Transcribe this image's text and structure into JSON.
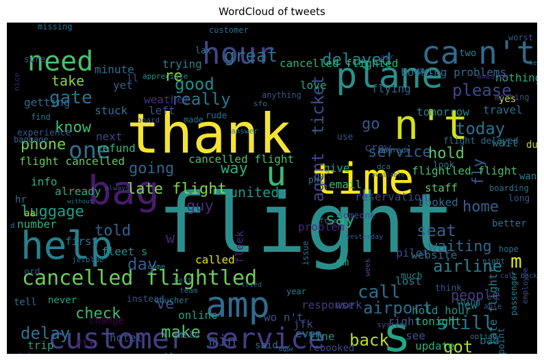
{
  "title": "WordCloud of tweets",
  "cloud": {
    "background": "#000000",
    "palette": "viridis",
    "words": [
      {
        "text": "flight",
        "c": "#2a8f8c"
      },
      {
        "text": "thank",
        "c": "#f4e332"
      },
      {
        "text": "customer service",
        "c": "#433e85"
      },
      {
        "text": "plane",
        "c": "#2a8f8c"
      },
      {
        "text": "time",
        "c": "#f8e621"
      },
      {
        "text": "bag",
        "c": "#481b6d"
      },
      {
        "text": "help",
        "c": "#26818e"
      },
      {
        "text": "hour",
        "c": "#3f4788"
      },
      {
        "text": "ca n't",
        "c": "#2f6b8e"
      },
      {
        "text": "n't",
        "c": "#d0e11c"
      },
      {
        "text": "s",
        "c": "#21a585"
      },
      {
        "text": "amp",
        "c": "#2f6c8e"
      },
      {
        "text": "u",
        "c": "#3bbb75"
      },
      {
        "text": "need",
        "c": "#4ac16d"
      },
      {
        "text": "one",
        "c": "#2e6e8e"
      },
      {
        "text": "cancelled flightled",
        "c": "#6ccd5a"
      },
      {
        "text": "m",
        "c": "#d8e219"
      },
      {
        "text": "gate",
        "c": "#2c738e"
      },
      {
        "text": "delayed",
        "c": "#26828e"
      },
      {
        "text": "agent",
        "c": "#404688"
      },
      {
        "text": "ticket",
        "c": "#3b528b"
      },
      {
        "text": "please",
        "c": "#3f4889"
      },
      {
        "text": "really",
        "c": "#2a768e"
      },
      {
        "text": "great",
        "c": "#2c718e"
      },
      {
        "text": "good",
        "c": "#21908d"
      },
      {
        "text": "service",
        "c": "#355f8d"
      },
      {
        "text": "today",
        "c": "#2c728e"
      },
      {
        "text": "go",
        "c": "#38588c"
      },
      {
        "text": "fly",
        "c": "#38588c"
      },
      {
        "text": "hold",
        "c": "#5cc863"
      },
      {
        "text": "know",
        "c": "#3dbc74"
      },
      {
        "text": "phone",
        "c": "#75d054"
      },
      {
        "text": "going",
        "c": "#31668e"
      },
      {
        "text": "late flight",
        "c": "#85d54a"
      },
      {
        "text": "way",
        "c": "#2ab07f"
      },
      {
        "text": "guy",
        "c": "#472d7b"
      },
      {
        "text": "luggage",
        "c": "#1fa088"
      },
      {
        "text": "united",
        "c": "#1f9a8a"
      },
      {
        "text": "home",
        "c": "#34608d"
      },
      {
        "text": "seat",
        "c": "#355f8d"
      },
      {
        "text": "say",
        "c": "#28ae80"
      },
      {
        "text": "told",
        "c": "#33628d"
      },
      {
        "text": "w",
        "c": "#482576"
      },
      {
        "text": "waiting",
        "c": "#31688e"
      },
      {
        "text": "airline",
        "c": "#26828e"
      },
      {
        "text": "day",
        "c": "#38598c"
      },
      {
        "text": "people",
        "c": "#443b84"
      },
      {
        "text": "call",
        "c": "#2d708e"
      },
      {
        "text": "airport",
        "c": "#306a8e"
      },
      {
        "text": "check",
        "c": "#3fbc73"
      },
      {
        "text": "ve",
        "c": "#3e4c8a"
      },
      {
        "text": "delay",
        "c": "#2c738e"
      },
      {
        "text": "make",
        "c": "#4ec36b"
      },
      {
        "text": "min",
        "c": "#3e4a89"
      },
      {
        "text": "still",
        "c": "#2c728e"
      },
      {
        "text": "back",
        "c": "#bade28"
      },
      {
        "text": "got",
        "c": "#addc30"
      },
      {
        "text": "take",
        "c": "#89d548"
      },
      {
        "text": "re",
        "c": "#9bd93c"
      },
      {
        "text": "cancelled flighted",
        "c": "#2eb37c"
      },
      {
        "text": "booking problems",
        "c": "#2e6d8e"
      },
      {
        "text": "flying",
        "c": "#2e6e8e"
      },
      {
        "text": "trying",
        "c": "#25838e"
      },
      {
        "text": "minute",
        "c": "#2c728e"
      },
      {
        "text": "yet",
        "c": "#33638d"
      },
      {
        "text": "love",
        "c": "#28ae80"
      },
      {
        "text": "nothing",
        "c": "#2ab07f"
      },
      {
        "text": "travel",
        "c": "#2d708e"
      },
      {
        "text": "tomorrow",
        "c": "#24878e"
      },
      {
        "text": "stuck",
        "c": "#2a768e"
      },
      {
        "text": "left",
        "c": "#3b528b"
      },
      {
        "text": "getting",
        "c": "#2f6c8e"
      },
      {
        "text": "weather",
        "c": "#472f7d"
      },
      {
        "text": "crew",
        "c": "#404688"
      },
      {
        "text": "next",
        "c": "#3e4989"
      },
      {
        "text": "refund",
        "c": "#34b679"
      },
      {
        "text": "flight cancelled",
        "c": "#65cb5e"
      },
      {
        "text": "cancelled flight",
        "c": "#4ac16d"
      },
      {
        "text": "flightled flight",
        "c": "#4ac16d"
      },
      {
        "text": "give",
        "c": "#20a386"
      },
      {
        "text": "email",
        "c": "#3fbc73"
      },
      {
        "text": "staff",
        "c": "#58c765"
      },
      {
        "text": "booked",
        "c": "#2e6f8e"
      },
      {
        "text": "pilot",
        "c": "#3b528b"
      },
      {
        "text": "reservation",
        "c": "#414487"
      },
      {
        "text": "problem",
        "c": "#482979"
      },
      {
        "text": "fleet s",
        "c": "#21918c"
      },
      {
        "text": "fleek",
        "c": "#482475"
      },
      {
        "text": "website",
        "c": "#2e6e8e"
      },
      {
        "text": "info",
        "c": "#2db27d"
      },
      {
        "text": "already",
        "c": "#2ab07f"
      },
      {
        "text": "number",
        "c": "#2fb47c"
      },
      {
        "text": "first",
        "c": "#2c738e"
      },
      {
        "text": "called",
        "c": "#e5e419"
      },
      {
        "text": "dm",
        "c": "#20a486"
      },
      {
        "text": "lost",
        "c": "#24868e"
      },
      {
        "text": "new",
        "c": "#24868e"
      },
      {
        "text": "bad",
        "c": "#2d708e"
      },
      {
        "text": "see",
        "c": "#3b528b"
      },
      {
        "text": "online",
        "c": "#1fa188"
      },
      {
        "text": "response",
        "c": "#443983"
      },
      {
        "text": "line",
        "c": "#21918c"
      },
      {
        "text": "wo n't",
        "c": "#3b528b"
      },
      {
        "text": "hold hour",
        "c": "#21918c"
      },
      {
        "text": "right",
        "c": "#38588c"
      },
      {
        "text": "tonight",
        "c": "#2ab07f"
      },
      {
        "text": "update",
        "c": "#29af7f"
      },
      {
        "text": "late flightr",
        "c": "#26828e"
      },
      {
        "text": "hotel",
        "c": "#38588c"
      },
      {
        "text": "trip",
        "c": "#20a386"
      },
      {
        "text": "flt",
        "c": "#481769"
      },
      {
        "text": "dfw",
        "c": "#2d708e"
      },
      {
        "text": "another",
        "c": "#24878e"
      },
      {
        "text": "leave",
        "c": "#2e6e8e"
      },
      {
        "text": "said",
        "c": "#2d718e"
      },
      {
        "text": "rebooked",
        "c": "#3e4989"
      },
      {
        "text": "change",
        "c": "#440154"
      },
      {
        "text": "mile",
        "c": "#3e4a89"
      },
      {
        "text": "jfk",
        "c": "#3e4989"
      },
      {
        "text": "even",
        "c": "#2c728e"
      },
      {
        "text": "work",
        "c": "#404688"
      },
      {
        "text": "tell",
        "c": "#2e6d8e"
      },
      {
        "text": "never",
        "c": "#21a585"
      },
      {
        "text": "instead",
        "c": "#3b528b"
      },
      {
        "text": "customer",
        "c": "#2e6e8e"
      },
      {
        "text": "lax",
        "c": "#2c738e"
      },
      {
        "text": "sfo",
        "c": "#2a768e"
      },
      {
        "text": "anything",
        "c": "#38588c"
      },
      {
        "text": "rude",
        "c": "#2c718e"
      },
      {
        "text": "made",
        "c": "#2c738e"
      },
      {
        "text": "answer",
        "c": "#2a768e"
      },
      {
        "text": "ll",
        "c": "#39568c"
      },
      {
        "text": "board",
        "c": "#3b528b"
      },
      {
        "text": "find",
        "c": "#2c728e"
      },
      {
        "text": "appreciate",
        "c": "#21918c"
      },
      {
        "text": "nice",
        "c": "#482576"
      },
      {
        "text": "missing",
        "c": "#2c738e"
      },
      {
        "text": "sure",
        "c": "#3b528b"
      },
      {
        "text": "experience",
        "c": "#38588c"
      },
      {
        "text": "baggage",
        "c": "#31688e"
      },
      {
        "text": "clt",
        "c": "#481f70"
      },
      {
        "text": "aa",
        "c": "#addc30"
      },
      {
        "text": "hr",
        "c": "#2d708e"
      },
      {
        "text": "always",
        "c": "#3e4a89"
      },
      {
        "text": "without",
        "c": "#2c718e"
      },
      {
        "text": "jetblue",
        "c": "#2d708e"
      },
      {
        "text": "d",
        "c": "#2a768e"
      },
      {
        "text": "ord",
        "c": "#38588c"
      },
      {
        "text": "voucher",
        "c": "#2a768e"
      },
      {
        "text": "come",
        "c": "#24868e"
      },
      {
        "text": "best",
        "c": "#2c728e"
      },
      {
        "text": "team",
        "c": "#2c738e"
      },
      {
        "text": "tried",
        "c": "#31688e"
      },
      {
        "text": "year",
        "c": "#26828e"
      },
      {
        "text": "issue",
        "c": "#2c738e"
      },
      {
        "text": "free",
        "c": "#2c718e"
      },
      {
        "text": "yesterday",
        "c": "#38588c"
      },
      {
        "text": "someone",
        "c": "#3e4a89"
      },
      {
        "text": "use",
        "c": "#3b528b"
      },
      {
        "text": "dca",
        "c": "#2c728e"
      },
      {
        "text": "phl",
        "c": "#2c738e"
      },
      {
        "text": "available",
        "c": "#38588c"
      },
      {
        "text": "look",
        "c": "#2c728e"
      },
      {
        "text": "upgrade",
        "c": "#2d708e"
      },
      {
        "text": "much",
        "c": "#24868e"
      },
      {
        "text": "think",
        "c": "#38588c"
      },
      {
        "text": "system",
        "c": "#3b528b"
      },
      {
        "text": "thing",
        "c": "#2c718e"
      },
      {
        "text": "week",
        "c": "#3e4a89"
      },
      {
        "text": "done",
        "c": "#2c738e"
      },
      {
        "text": "pay",
        "c": "#38588c"
      },
      {
        "text": "wifi",
        "c": "#2c718e"
      },
      {
        "text": "status",
        "c": "#2c738e"
      },
      {
        "text": "well",
        "c": "#3b528b"
      },
      {
        "text": "sent",
        "c": "#24868e"
      },
      {
        "text": "gate agent",
        "c": "#38588c"
      },
      {
        "text": "option",
        "c": "#2c718e"
      },
      {
        "text": "point",
        "c": "#2c738e"
      },
      {
        "text": "able",
        "c": "#3b528b"
      },
      {
        "text": "night",
        "c": "#2c728e"
      },
      {
        "text": "call back",
        "c": "#38588c"
      },
      {
        "text": "passenger",
        "c": "#26828e"
      },
      {
        "text": "employee",
        "c": "#3e4a89"
      },
      {
        "text": "hope",
        "c": "#2c738e"
      },
      {
        "text": "better",
        "c": "#2c718e"
      },
      {
        "text": "long",
        "c": "#38588c"
      },
      {
        "text": "want",
        "c": "#26828e"
      },
      {
        "text": "boarding",
        "c": "#2c728e"
      },
      {
        "text": "due",
        "c": "#bade28"
      },
      {
        "text": "wait",
        "c": "#2c738e"
      },
      {
        "text": "yes",
        "c": "#d8e219"
      },
      {
        "text": "morning",
        "c": "#3b528b"
      },
      {
        "text": "awesome",
        "c": "#482979"
      },
      {
        "text": "worst",
        "c": "#38588c"
      },
      {
        "text": "keep",
        "c": "#2c718e"
      },
      {
        "text": "two",
        "c": "#26828e"
      },
      {
        "text": "put",
        "c": "#2c738e"
      },
      {
        "text": "air",
        "c": "#3e4a89"
      },
      {
        "text": "flight delayed",
        "c": "#2c728e"
      }
    ]
  }
}
